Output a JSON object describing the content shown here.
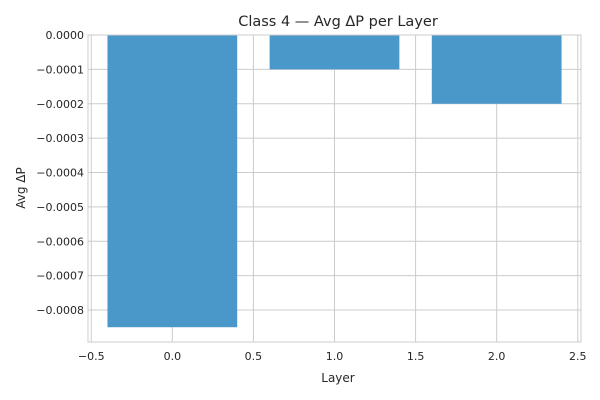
{
  "chart_data": {
    "type": "bar",
    "title": "Class 4 — Avg ΔP per Layer",
    "xlabel": "Layer",
    "ylabel": "Avg ΔP",
    "x": [
      0,
      1,
      2
    ],
    "values": [
      -0.00085,
      -0.0001,
      -0.0002
    ],
    "bar_width": 0.8,
    "bar_color": "#4a98c9",
    "xlim": [
      -0.52,
      2.52
    ],
    "ylim": [
      -0.000893,
      0.0
    ],
    "xticks": [
      -0.5,
      0.0,
      0.5,
      1.0,
      1.5,
      2.0,
      2.5
    ],
    "xtick_labels": [
      "−0.5",
      "0.0",
      "0.5",
      "1.0",
      "1.5",
      "2.0",
      "2.5"
    ],
    "yticks": [
      0.0,
      -0.0001,
      -0.0002,
      -0.0003,
      -0.0004,
      -0.0005,
      -0.0006,
      -0.0007,
      -0.0008
    ],
    "ytick_labels": [
      "0.0000",
      "−0.0001",
      "−0.0002",
      "−0.0003",
      "−0.0004",
      "−0.0005",
      "−0.0006",
      "−0.0007",
      "−0.0008"
    ],
    "grid": true
  }
}
